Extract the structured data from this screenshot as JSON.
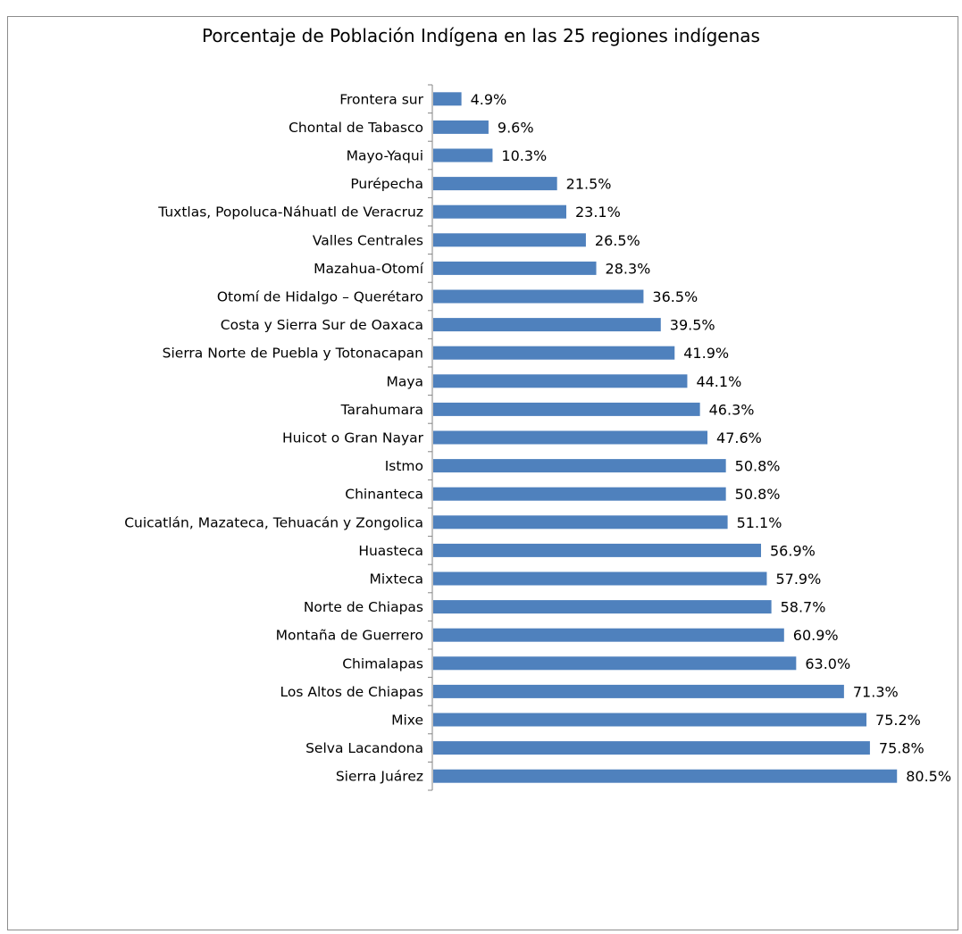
{
  "chart_data": {
    "type": "bar",
    "orientation": "horizontal",
    "title": "Porcentaje de Población Indígena en las 25 regiones indígenas",
    "categories": [
      "Frontera sur",
      "Chontal de Tabasco",
      "Mayo-Yaqui",
      "Purépecha",
      "Tuxtlas, Popoluca-Náhuatl de Veracruz",
      "Valles Centrales",
      "Mazahua-Otomí",
      "Otomí de Hidalgo – Querétaro",
      "Costa y Sierra Sur de Oaxaca",
      "Sierra Norte de Puebla y Totonacapan",
      "Maya",
      "Tarahumara",
      "Huicot o Gran Nayar",
      "Istmo",
      "Chinanteca",
      "Cuicatlán, Mazateca, Tehuacán y Zongolica",
      "Huasteca",
      "Mixteca",
      "Norte de Chiapas",
      "Montaña de Guerrero",
      "Chimalapas",
      "Los Altos de Chiapas",
      "Mixe",
      "Selva Lacandona",
      "Sierra Juárez"
    ],
    "values": [
      4.9,
      9.6,
      10.3,
      21.5,
      23.1,
      26.5,
      28.3,
      36.5,
      39.5,
      41.9,
      44.1,
      46.3,
      47.6,
      50.8,
      50.8,
      51.1,
      56.9,
      57.9,
      58.7,
      60.9,
      63.0,
      71.3,
      75.2,
      75.8,
      80.5
    ],
    "value_labels": [
      "4.9%",
      "9.6%",
      "10.3%",
      "21.5%",
      "23.1%",
      "26.5%",
      "28.3%",
      "36.5%",
      "39.5%",
      "41.9%",
      "44.1%",
      "46.3%",
      "47.6%",
      "50.8%",
      "50.8%",
      "51.1%",
      "56.9%",
      "57.9%",
      "58.7%",
      "60.9%",
      "63.0%",
      "71.3%",
      "75.2%",
      "75.8%",
      "80.5%"
    ],
    "xlim": [
      0,
      100
    ],
    "xlabel": "",
    "ylabel": "",
    "grid": false,
    "legend": "none",
    "bar_color": "#4f81bd",
    "axis_color": "#868686"
  }
}
